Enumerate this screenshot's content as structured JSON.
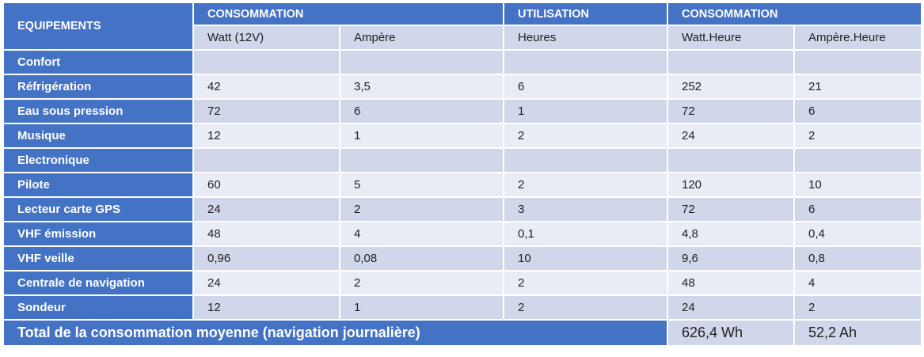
{
  "header": {
    "equipements": "EQUIPEMENTS",
    "group1": "CONSOMMATION",
    "group2": "UTILISATION",
    "group3": "CONSOMMATION",
    "watt": "Watt (12V)",
    "ampere": "Ampère",
    "heures": "Heures",
    "watt_heure": "Watt.Heure",
    "ampere_heure": "Ampère.Heure"
  },
  "rows": [
    {
      "label": "Confort",
      "watt": "",
      "ampere": "",
      "heures": "",
      "wh": "",
      "ah": ""
    },
    {
      "label": "Réfrigération",
      "watt": "42",
      "ampere": "3,5",
      "heures": "6",
      "wh": "252",
      "ah": "21"
    },
    {
      "label": "Eau sous pression",
      "watt": "72",
      "ampere": "6",
      "heures": "1",
      "wh": "72",
      "ah": "6"
    },
    {
      "label": "Musique",
      "watt": "12",
      "ampere": "1",
      "heures": "2",
      "wh": "24",
      "ah": "2"
    },
    {
      "label": "Electronique",
      "watt": "",
      "ampere": "",
      "heures": "",
      "wh": "",
      "ah": ""
    },
    {
      "label": "Pilote",
      "watt": "60",
      "ampere": "5",
      "heures": "2",
      "wh": "120",
      "ah": "10"
    },
    {
      "label": "Lecteur carte GPS",
      "watt": "24",
      "ampere": "2",
      "heures": "3",
      "wh": "72",
      "ah": "6"
    },
    {
      "label": "VHF émission",
      "watt": "48",
      "ampere": "4",
      "heures": "0,1",
      "wh": "4,8",
      "ah": "0,4"
    },
    {
      "label": "VHF veille",
      "watt": "0,96",
      "ampere": "0,08",
      "heures": "10",
      "wh": "9,6",
      "ah": "0,8"
    },
    {
      "label": "Centrale de navigation",
      "watt": "24",
      "ampere": "2",
      "heures": "2",
      "wh": "48",
      "ah": "4"
    },
    {
      "label": "Sondeur",
      "watt": "12",
      "ampere": "1",
      "heures": "2",
      "wh": "24",
      "ah": "2"
    }
  ],
  "total": {
    "label": "Total de la consommation moyenne (navigation journalière)",
    "wh": "626,4 Wh",
    "ah": "52,2 Ah"
  }
}
